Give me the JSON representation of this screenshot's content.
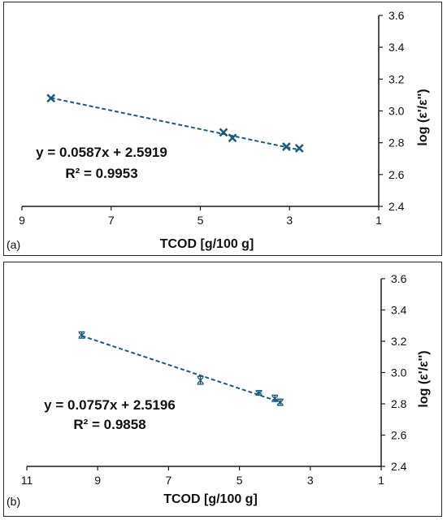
{
  "chart_data": [
    {
      "type": "scatter",
      "panel_label": "(a)",
      "xlabel": "TCOD [g/100 g]",
      "ylabel": "log (ε'/ε'')",
      "xlim": [
        9,
        1
      ],
      "x_reversed": true,
      "ylim": [
        2.4,
        3.6
      ],
      "xticks": [
        9,
        7,
        5,
        3,
        1
      ],
      "yticks": [
        2.4,
        2.6,
        2.8,
        3.0,
        3.2,
        3.4,
        3.6
      ],
      "ytick_labels": [
        "2.4",
        "2.6",
        "2.8",
        "3.0",
        "3.2",
        "3.4",
        "3.6"
      ],
      "y_axis_side": "right",
      "grid": false,
      "marker": "x",
      "color": "#1f5a7a",
      "series": [
        {
          "x": [
            8.35,
            4.48,
            4.28,
            3.07,
            2.78
          ],
          "y": [
            3.08,
            2.865,
            2.83,
            2.775,
            2.765
          ]
        }
      ],
      "trendline": {
        "type": "linear",
        "slope": 0.0587,
        "intercept": 2.5919,
        "x_range": [
          8.35,
          2.78
        ],
        "style": "dashed"
      },
      "equation": "y = 0.0587x + 2.5919",
      "r_squared": "R² = 0.9953"
    },
    {
      "type": "scatter",
      "panel_label": "(b)",
      "xlabel": "TCOD [g/100 g]",
      "ylabel": "log (ε'/ε'')",
      "xlim": [
        11,
        1
      ],
      "x_reversed": true,
      "ylim": [
        2.4,
        3.6
      ],
      "xticks": [
        11,
        9,
        7,
        5,
        3,
        1
      ],
      "yticks": [
        2.4,
        2.6,
        2.8,
        3.0,
        3.2,
        3.4,
        3.6
      ],
      "ytick_labels": [
        "2.4",
        "2.6",
        "2.8",
        "3.0",
        "3.2",
        "3.4",
        "3.6"
      ],
      "y_axis_side": "right",
      "grid": false,
      "marker": "error-bar",
      "color": "#1f5a7a",
      "series": [
        {
          "x": [
            9.45,
            6.1,
            4.45,
            4.0,
            3.85
          ],
          "y": [
            3.24,
            2.95,
            2.87,
            2.835,
            2.81
          ],
          "error": [
            0.02,
            0.025,
            0.015,
            0.02,
            0.02
          ]
        }
      ],
      "trendline": {
        "type": "linear",
        "slope": 0.0757,
        "intercept": 2.5196,
        "x_range": [
          9.45,
          3.85
        ],
        "style": "dashed"
      },
      "equation": "y = 0.0757x + 2.5196",
      "r_squared": "R² = 0.9858"
    }
  ]
}
